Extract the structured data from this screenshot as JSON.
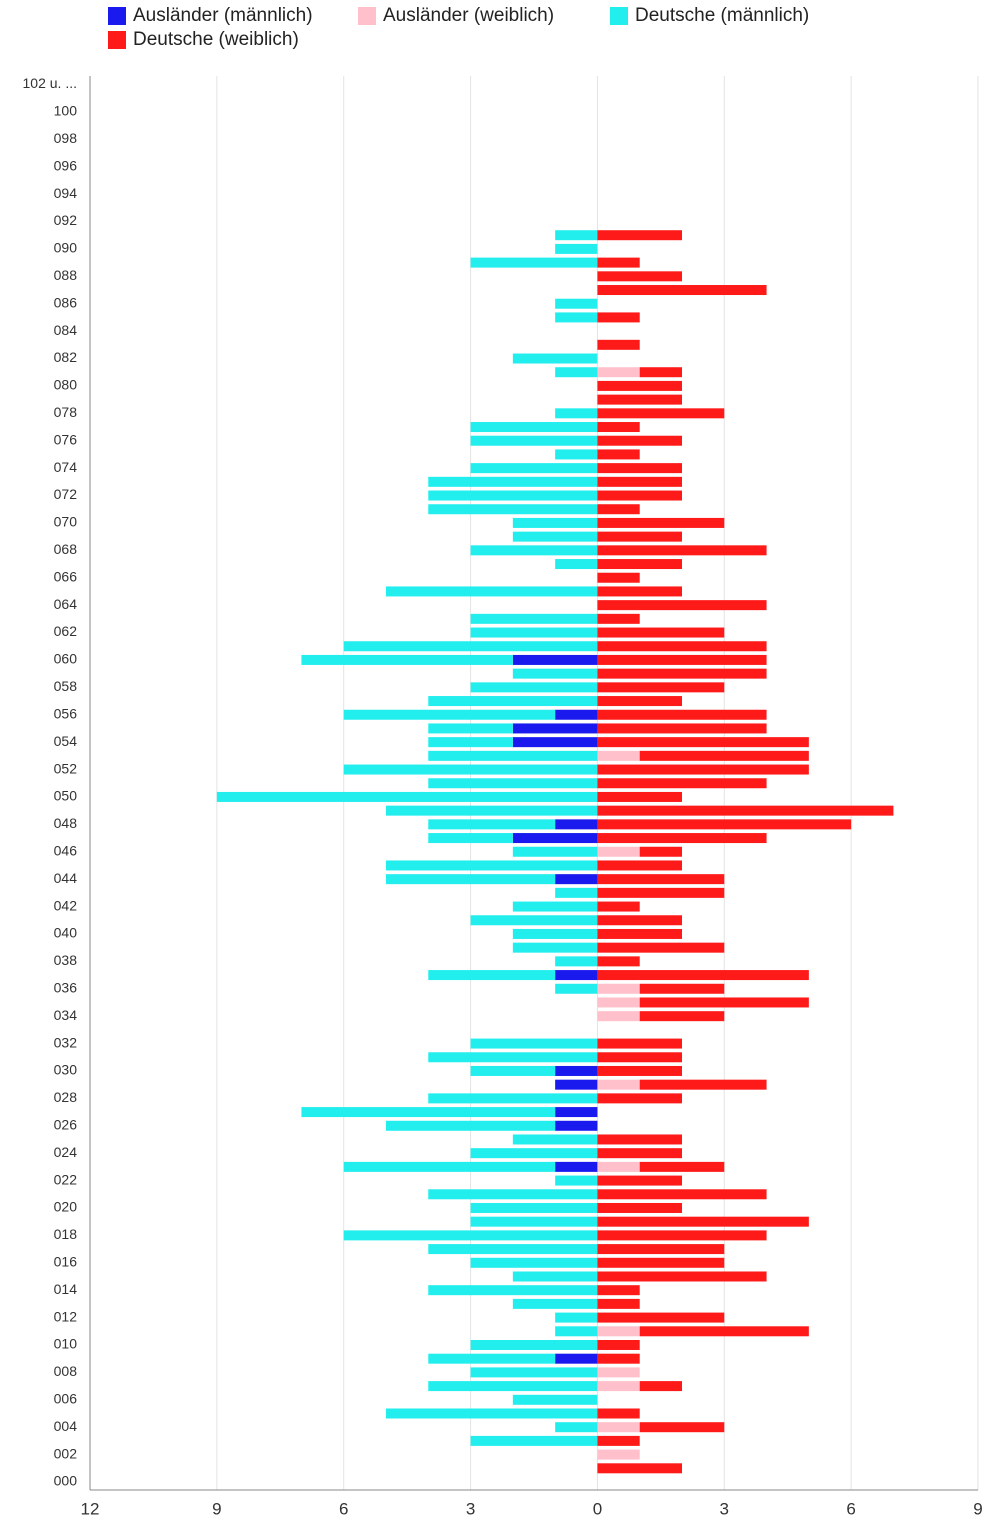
{
  "chart_data": {
    "type": "bar",
    "orientation": "horizontal",
    "stacked": true,
    "grid": true,
    "legend": "top",
    "categories": [
      "000",
      null,
      "002",
      null,
      "004",
      null,
      "006",
      null,
      "008",
      null,
      "010",
      null,
      "012",
      null,
      "014",
      null,
      "016",
      null,
      "018",
      null,
      "020",
      null,
      "022",
      null,
      "024",
      null,
      "026",
      null,
      "028",
      null,
      "030",
      null,
      "032",
      null,
      "034",
      null,
      "036",
      null,
      "038",
      null,
      "040",
      null,
      "042",
      null,
      "044",
      null,
      "046",
      null,
      "048",
      null,
      "050",
      null,
      "052",
      null,
      "054",
      null,
      "056",
      null,
      "058",
      null,
      "060",
      null,
      "062",
      null,
      "064",
      null,
      "066",
      null,
      "068",
      null,
      "070",
      null,
      "072",
      null,
      "074",
      null,
      "076",
      null,
      "078",
      null,
      "080",
      null,
      "082",
      null,
      "084",
      null,
      "086",
      null,
      "088",
      null,
      "090",
      null,
      "092",
      null,
      "094",
      null,
      "096",
      null,
      "098",
      null,
      "100",
      null,
      "102 u. ..."
    ],
    "series": [
      {
        "name": "Ausländer (männlich)",
        "color": "#1a1aee",
        "values": [
          0,
          0,
          0,
          0,
          0,
          0,
          0,
          0,
          0,
          -1,
          0,
          0,
          0,
          0,
          0,
          0,
          0,
          0,
          0,
          0,
          0,
          0,
          0,
          -1,
          0,
          0,
          -1,
          -1,
          0,
          -1,
          -1,
          0,
          0,
          0,
          0,
          0,
          0,
          -1,
          0,
          0,
          0,
          0,
          0,
          0,
          -1,
          0,
          0,
          -2,
          -1,
          0,
          0,
          0,
          0,
          0,
          -2,
          -2,
          -1,
          0,
          0,
          0,
          -2,
          0,
          0,
          0,
          0,
          0,
          0,
          0,
          0,
          0,
          0,
          0,
          0,
          0,
          0,
          0,
          0,
          0,
          0,
          0,
          0,
          0,
          0,
          0,
          0,
          0,
          0,
          0,
          0,
          0,
          0,
          0,
          0,
          0,
          0,
          0,
          0,
          0,
          0,
          0,
          0,
          0,
          0
        ]
      },
      {
        "name": "Ausländer (weiblich)",
        "color": "#ffc0cb",
        "values": [
          0,
          0,
          1,
          0,
          1,
          0,
          0,
          1,
          1,
          0,
          0,
          1,
          0,
          0,
          0,
          0,
          0,
          0,
          0,
          0,
          0,
          0,
          0,
          1,
          0,
          0,
          0,
          0,
          0,
          1,
          0,
          0,
          0,
          0,
          1,
          1,
          1,
          0,
          0,
          0,
          0,
          0,
          0,
          0,
          0,
          0,
          1,
          0,
          0,
          0,
          0,
          0,
          0,
          1,
          0,
          0,
          0,
          0,
          0,
          0,
          0,
          0,
          0,
          0,
          0,
          0,
          0,
          0,
          0,
          0,
          0,
          0,
          0,
          0,
          0,
          0,
          0,
          0,
          0,
          0,
          0,
          1,
          0,
          0,
          0,
          0,
          0,
          0,
          0,
          0,
          0,
          0,
          0,
          0,
          0,
          0,
          0,
          0,
          0,
          0,
          0,
          0,
          0
        ]
      },
      {
        "name": "Deutsche (männlich)",
        "color": "#22eeee",
        "values": [
          0,
          0,
          0,
          -3,
          -1,
          -5,
          -2,
          -4,
          -3,
          -3,
          -3,
          -1,
          -1,
          -2,
          -4,
          -2,
          -3,
          -4,
          -6,
          -3,
          -3,
          -4,
          -1,
          -5,
          -3,
          -2,
          -4,
          -6,
          -4,
          0,
          -2,
          -4,
          -3,
          0,
          0,
          0,
          -1,
          -3,
          -1,
          -2,
          -2,
          -3,
          -2,
          -1,
          -4,
          -5,
          -2,
          -2,
          -3,
          -5,
          -9,
          -4,
          -6,
          -4,
          -2,
          -2,
          -5,
          -4,
          -3,
          -2,
          -5,
          -6,
          -3,
          -3,
          0,
          -5,
          0,
          -1,
          -3,
          -2,
          -2,
          -4,
          -4,
          -4,
          -3,
          -1,
          -3,
          -3,
          -1,
          0,
          0,
          -1,
          -2,
          0,
          0,
          -1,
          -1,
          0,
          0,
          -3,
          -1,
          -1,
          0,
          0,
          0,
          0,
          0,
          0,
          0,
          0,
          0,
          0,
          0
        ]
      },
      {
        "name": "Deutsche (weiblich)",
        "color": "#ff1a1a",
        "values": [
          0,
          2,
          0,
          1,
          2,
          1,
          0,
          1,
          0,
          1,
          1,
          4,
          3,
          1,
          1,
          4,
          3,
          3,
          4,
          5,
          2,
          4,
          2,
          2,
          2,
          2,
          0,
          0,
          2,
          3,
          2,
          2,
          2,
          0,
          2,
          4,
          2,
          5,
          1,
          3,
          2,
          2,
          1,
          3,
          3,
          2,
          1,
          4,
          6,
          7,
          2,
          4,
          5,
          4,
          5,
          4,
          4,
          2,
          3,
          4,
          4,
          4,
          3,
          1,
          4,
          2,
          1,
          2,
          4,
          2,
          3,
          1,
          2,
          2,
          2,
          1,
          2,
          1,
          3,
          2,
          2,
          1,
          0,
          1,
          0,
          1,
          0,
          4,
          2,
          1,
          0,
          2,
          0,
          0,
          0,
          0,
          0,
          0,
          0,
          0,
          0,
          0,
          0
        ]
      }
    ],
    "xlim": [
      -12,
      9
    ],
    "xticks": [
      {
        "value": -12,
        "label": "12"
      },
      {
        "value": -9,
        "label": "9"
      },
      {
        "value": -6,
        "label": "6"
      },
      {
        "value": -3,
        "label": "3"
      },
      0,
      3,
      6,
      9
    ]
  }
}
